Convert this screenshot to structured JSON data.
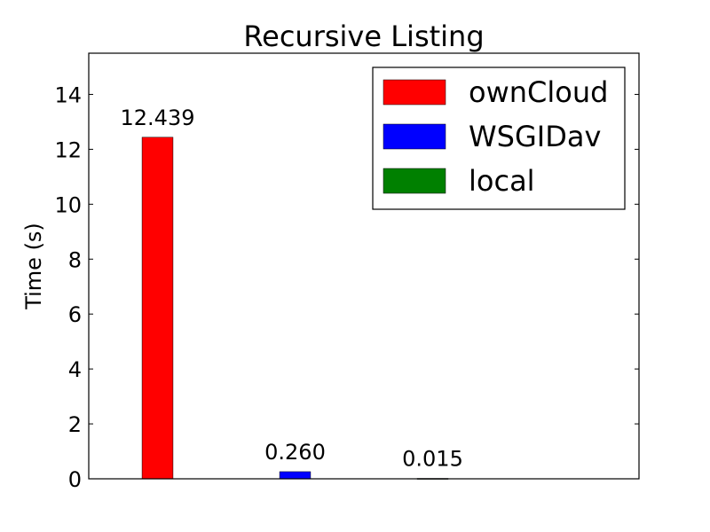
{
  "chart_data": {
    "type": "bar",
    "title": "Recursive Listing",
    "ylabel": "Time (s)",
    "xlabel": "",
    "ylim": [
      0,
      15.5
    ],
    "yticks": [
      0,
      2,
      4,
      6,
      8,
      10,
      12,
      14
    ],
    "xlim": [
      0,
      8
    ],
    "legend_position": "top-right",
    "series": [
      {
        "name": "ownCloud",
        "value": 12.439,
        "value_label": "12.439",
        "x": 1,
        "color": "#ff0000"
      },
      {
        "name": "WSGIDav",
        "value": 0.26,
        "value_label": "0.260",
        "x": 3,
        "color": "#0000ff"
      },
      {
        "name": "local",
        "value": 0.015,
        "value_label": "0.015",
        "x": 5,
        "color": "#008000"
      }
    ]
  }
}
